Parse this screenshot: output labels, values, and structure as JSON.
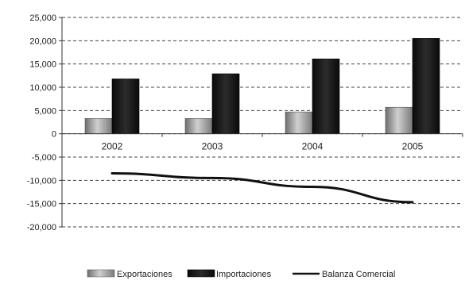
{
  "chart_data": {
    "type": "bar",
    "categories": [
      "2002",
      "2003",
      "2004",
      "2005"
    ],
    "series": [
      {
        "name": "Exportaciones",
        "kind": "bar",
        "values": [
          3300,
          3300,
          4700,
          5700
        ],
        "color": "#9a9a9a"
      },
      {
        "name": "Importaciones",
        "kind": "bar",
        "values": [
          11800,
          12900,
          16100,
          20500
        ],
        "color": "#1a1a1a"
      },
      {
        "name": "Balanza Comercial",
        "kind": "line",
        "values": [
          -8500,
          -9500,
          -11400,
          -14700
        ],
        "color": "#111111"
      }
    ],
    "ylim": [
      -20000,
      25000
    ],
    "ytick_step": 5000,
    "ytick_labels": [
      "-20,000",
      "-15,000",
      "-10,000",
      "-5,000",
      "0",
      "5,000",
      "10,000",
      "15,000",
      "20,000",
      "25,000"
    ],
    "grid": true,
    "grid_style": "dashed",
    "legend_position": "bottom-center",
    "title": "",
    "xlabel": "",
    "ylabel": ""
  }
}
